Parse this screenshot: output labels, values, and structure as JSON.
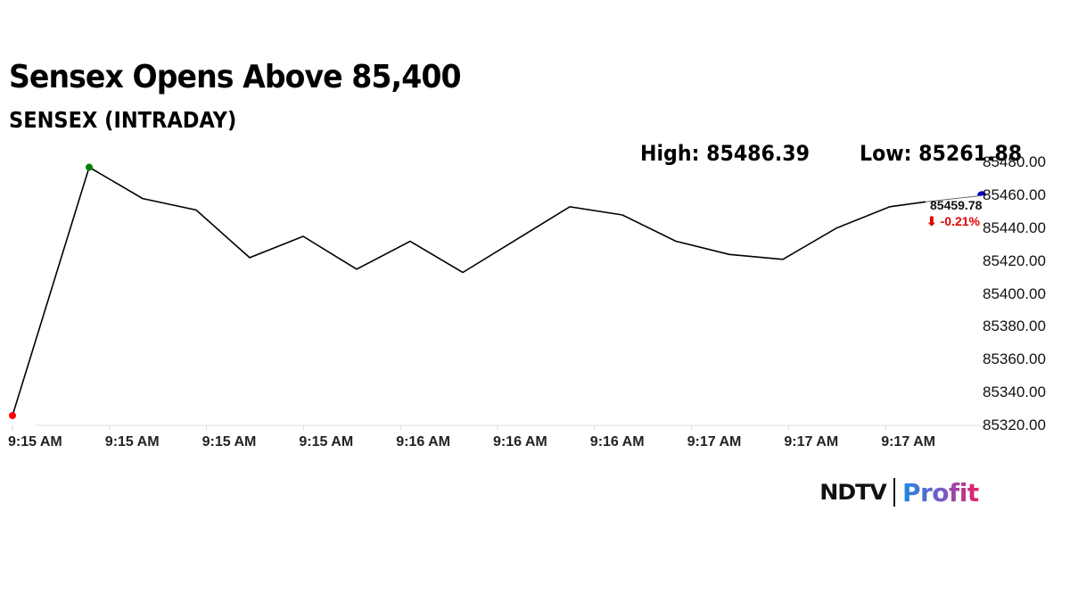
{
  "header": {
    "title": "Sensex Opens Above 85,400",
    "subtitle": "SENSEX (INTRADAY)",
    "high_label": "High: 85486.39",
    "low_label": "Low: 85261.88"
  },
  "last_point": {
    "value": "85459.78",
    "change": "⬇ -0.21%",
    "change_color": "#e00000"
  },
  "logo": {
    "brand": "NDTV",
    "product": "Profit"
  },
  "colors": {
    "line": "#000000",
    "open_marker": "#ff0000",
    "high_marker": "#008000",
    "last_marker": "#0000cc"
  },
  "chart_data": {
    "type": "line",
    "title": "Sensex Opens Above 85,400",
    "subtitle": "SENSEX (INTRADAY)",
    "xlabel": "",
    "ylabel": "",
    "grid": false,
    "legend": "none",
    "annotations": [
      "High: 85486.39",
      "Low: 85261.88",
      "85459.78",
      "-0.21%"
    ],
    "x_tick_labels": [
      "9:15 AM",
      "9:15 AM",
      "9:15 AM",
      "9:15 AM",
      "9:16 AM",
      "9:16 AM",
      "9:16 AM",
      "9:17 AM",
      "9:17 AM",
      "9:17 AM"
    ],
    "y_tick_labels": [
      "85320.00",
      "85340.00",
      "85360.00",
      "85380.00",
      "85400.00",
      "85420.00",
      "85440.00",
      "85460.00",
      "85480.00"
    ],
    "ylim": [
      85320,
      85480
    ],
    "series": [
      {
        "name": "SENSEX",
        "values": [
          85326,
          85477,
          85458,
          85451,
          85422,
          85435,
          85415,
          85432,
          85413,
          85433,
          85453,
          85448,
          85432,
          85424,
          85421,
          85440,
          85453,
          85456,
          85459.78
        ]
      }
    ]
  }
}
